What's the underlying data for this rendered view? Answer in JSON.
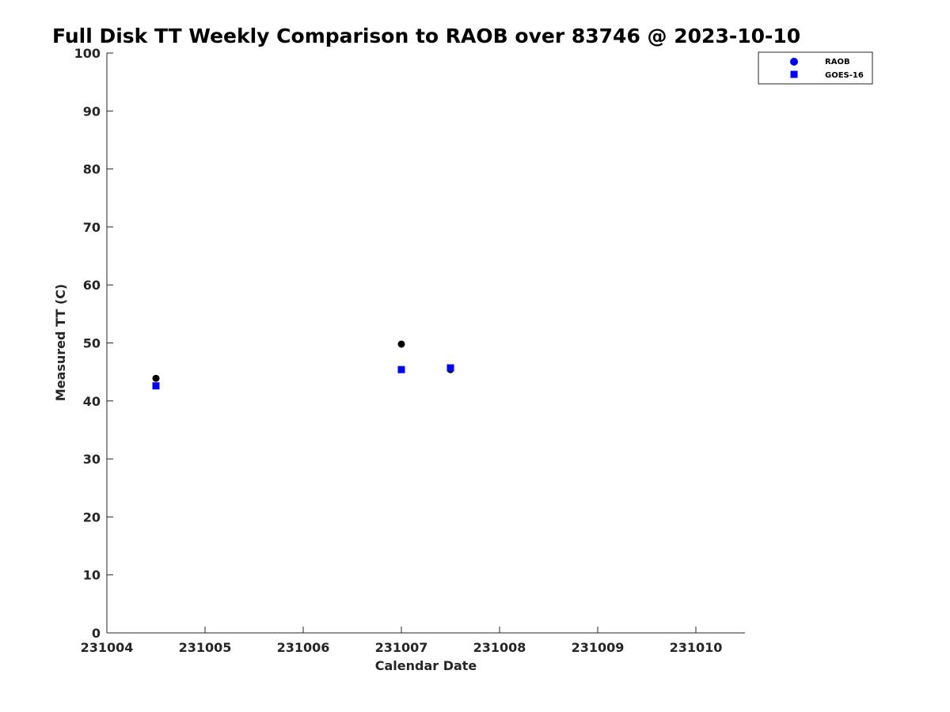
{
  "chart_data": {
    "type": "scatter",
    "title": "Full Disk TT Weekly Comparison to RAOB over 83746 @ 2023-10-10",
    "xlabel": "Calendar Date",
    "ylabel": "Measured TT (C)",
    "xlim": [
      231004,
      231010.5
    ],
    "ylim": [
      0,
      100
    ],
    "x_ticks": [
      231004,
      231005,
      231006,
      231007,
      231008,
      231009,
      231010
    ],
    "x_tick_labels": [
      "231004",
      "231005",
      "231006",
      "231007",
      "231008",
      "231009",
      "231010"
    ],
    "y_ticks": [
      0,
      10,
      20,
      30,
      40,
      50,
      60,
      70,
      80,
      90,
      100
    ],
    "y_tick_labels": [
      "0",
      "10",
      "20",
      "30",
      "40",
      "50",
      "60",
      "70",
      "80",
      "90",
      "100"
    ],
    "grid": false,
    "legend_position": "top-right",
    "series": [
      {
        "name": "RAOB",
        "marker": "circle",
        "legend_color": "#0000ff",
        "point_color": "#000000",
        "x": [
          231004.5,
          231007.0,
          231007.5
        ],
        "y": [
          43.9,
          49.8,
          45.4
        ]
      },
      {
        "name": "GOES-16",
        "marker": "square",
        "legend_color": "#0000ff",
        "point_color": "#0000ff",
        "x": [
          231004.5,
          231007.0,
          231007.5
        ],
        "y": [
          42.6,
          45.4,
          45.7
        ]
      }
    ]
  }
}
